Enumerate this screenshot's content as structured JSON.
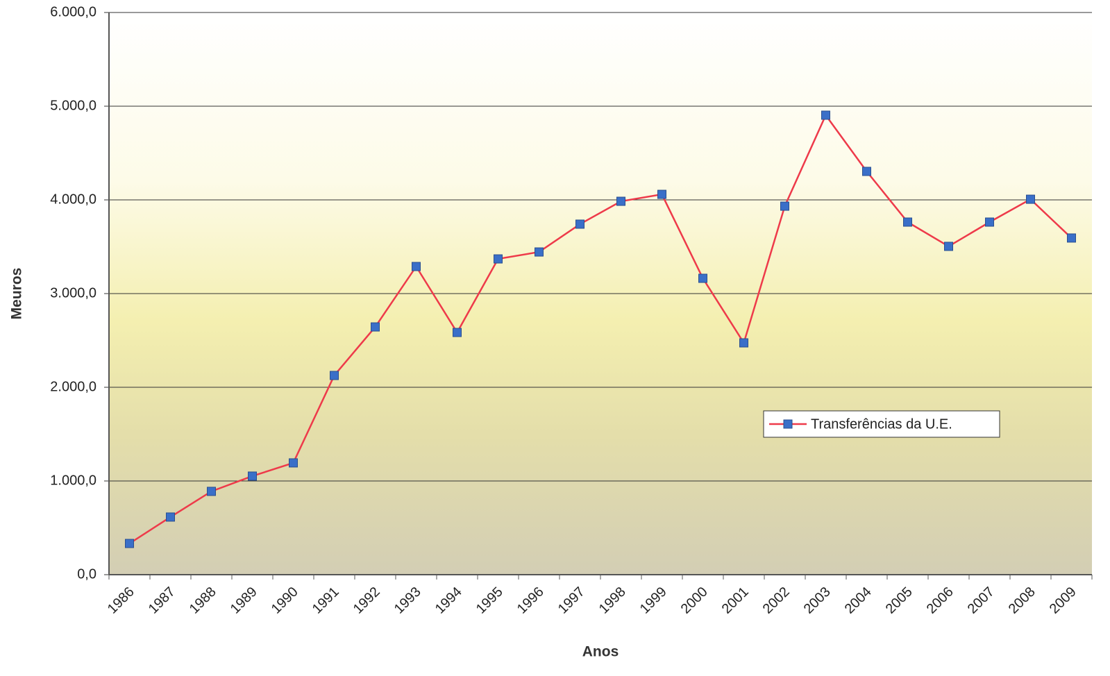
{
  "chart_data": {
    "type": "line",
    "x_label": "Anos",
    "y_label": "Meuros",
    "categories": [
      "1986",
      "1987",
      "1988",
      "1989",
      "1990",
      "1991",
      "1992",
      "1993",
      "1994",
      "1995",
      "1996",
      "1997",
      "1998",
      "1999",
      "2000",
      "2001",
      "2002",
      "2003",
      "2004",
      "2005",
      "2006",
      "2007",
      "2008",
      "2009"
    ],
    "series": [
      {
        "name": "Transferências da U.E.",
        "color": "#ee3a4a",
        "marker_color": "#3a6fc8",
        "values": [
          333,
          615,
          889,
          1052,
          1193,
          2126,
          2644,
          3289,
          2585,
          3370,
          3444,
          3741,
          3985,
          4059,
          3163,
          2474,
          3933,
          4904,
          4304,
          3763,
          3504,
          3763,
          4007,
          3593
        ]
      }
    ],
    "ylim": [
      0,
      6000
    ],
    "yticks": [
      {
        "value": 0,
        "label": "0,0"
      },
      {
        "value": 1000,
        "label": "1.000,0"
      },
      {
        "value": 2000,
        "label": "2.000,0"
      },
      {
        "value": 3000,
        "label": "3.000,0"
      },
      {
        "value": 4000,
        "label": "4.000,0"
      },
      {
        "value": 5000,
        "label": "5.000,0"
      },
      {
        "value": 6000,
        "label": "6.000,0"
      }
    ],
    "grid": true,
    "legend": "right"
  }
}
